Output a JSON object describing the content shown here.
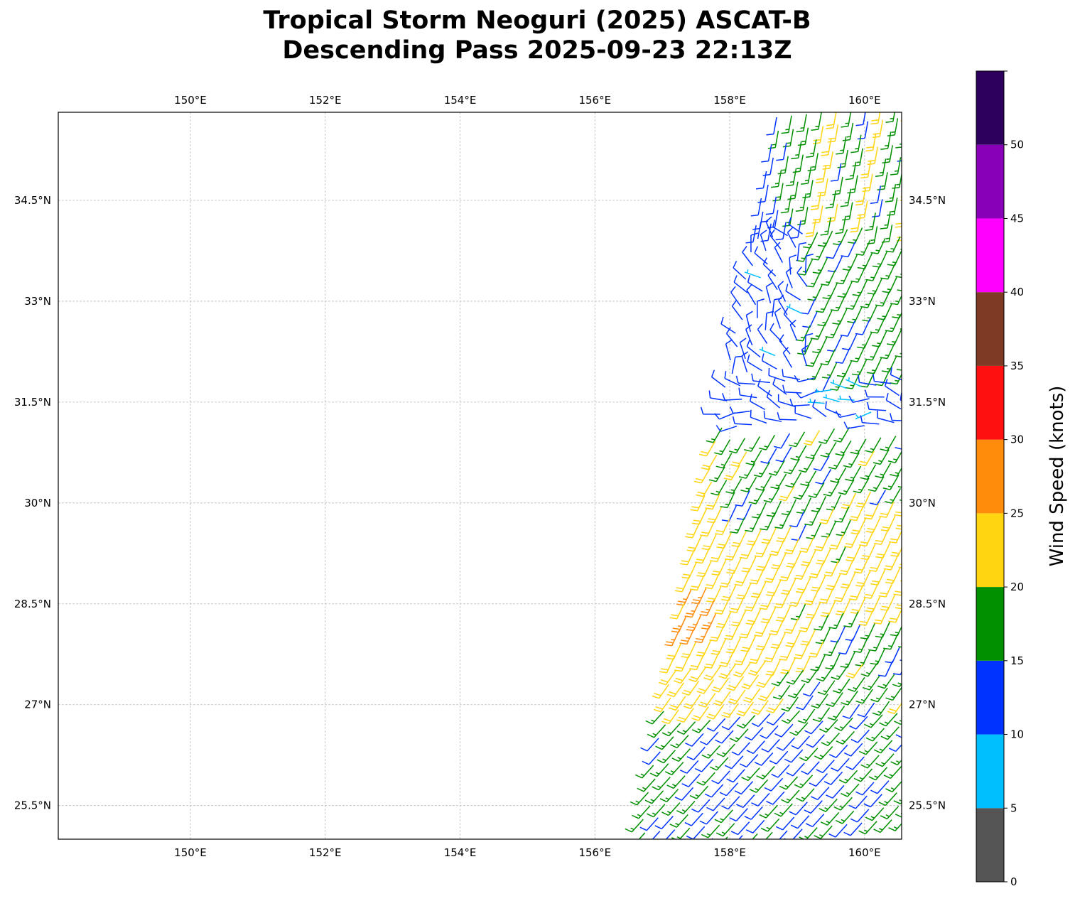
{
  "title": {
    "line1": "Tropical Storm Neoguri (2025) ASCAT-B",
    "line2": "Descending Pass 2025-09-23 22:13Z"
  },
  "map": {
    "lon_range": [
      148.04,
      160.55
    ],
    "lat_range": [
      25.0,
      35.81
    ],
    "lon_ticks": [
      150,
      152,
      154,
      156,
      158,
      160
    ],
    "lon_tick_labels": [
      "150°E",
      "152°E",
      "154°E",
      "156°E",
      "158°E",
      "160°E"
    ],
    "lat_ticks": [
      25.5,
      27,
      28.5,
      30,
      31.5,
      33,
      34.5
    ],
    "lat_tick_labels": [
      "25.5°N",
      "27°N",
      "28.5°N",
      "30°N",
      "31.5°N",
      "33°N",
      "34.5°N"
    ],
    "gridlines": true,
    "symbol": "wind-barbs"
  },
  "colorbar": {
    "label": "Wind Speed (knots)",
    "range": [
      0,
      55
    ],
    "bounds": [
      0,
      5,
      10,
      15,
      20,
      25,
      30,
      35,
      40,
      45,
      50,
      55
    ],
    "colors": [
      "#555555",
      "#00bfff",
      "#0033ff",
      "#009000",
      "#ffd511",
      "#ff8c0a",
      "#ff1010",
      "#7f3a26",
      "#ff00ff",
      "#8800b8",
      "#2e005e"
    ],
    "ticks": [
      0,
      5,
      10,
      15,
      20,
      25,
      30,
      35,
      40,
      45,
      50
    ],
    "tick_labels": [
      "0",
      "5",
      "10",
      "15",
      "20",
      "25",
      "30",
      "35",
      "40",
      "45",
      "50"
    ]
  }
}
